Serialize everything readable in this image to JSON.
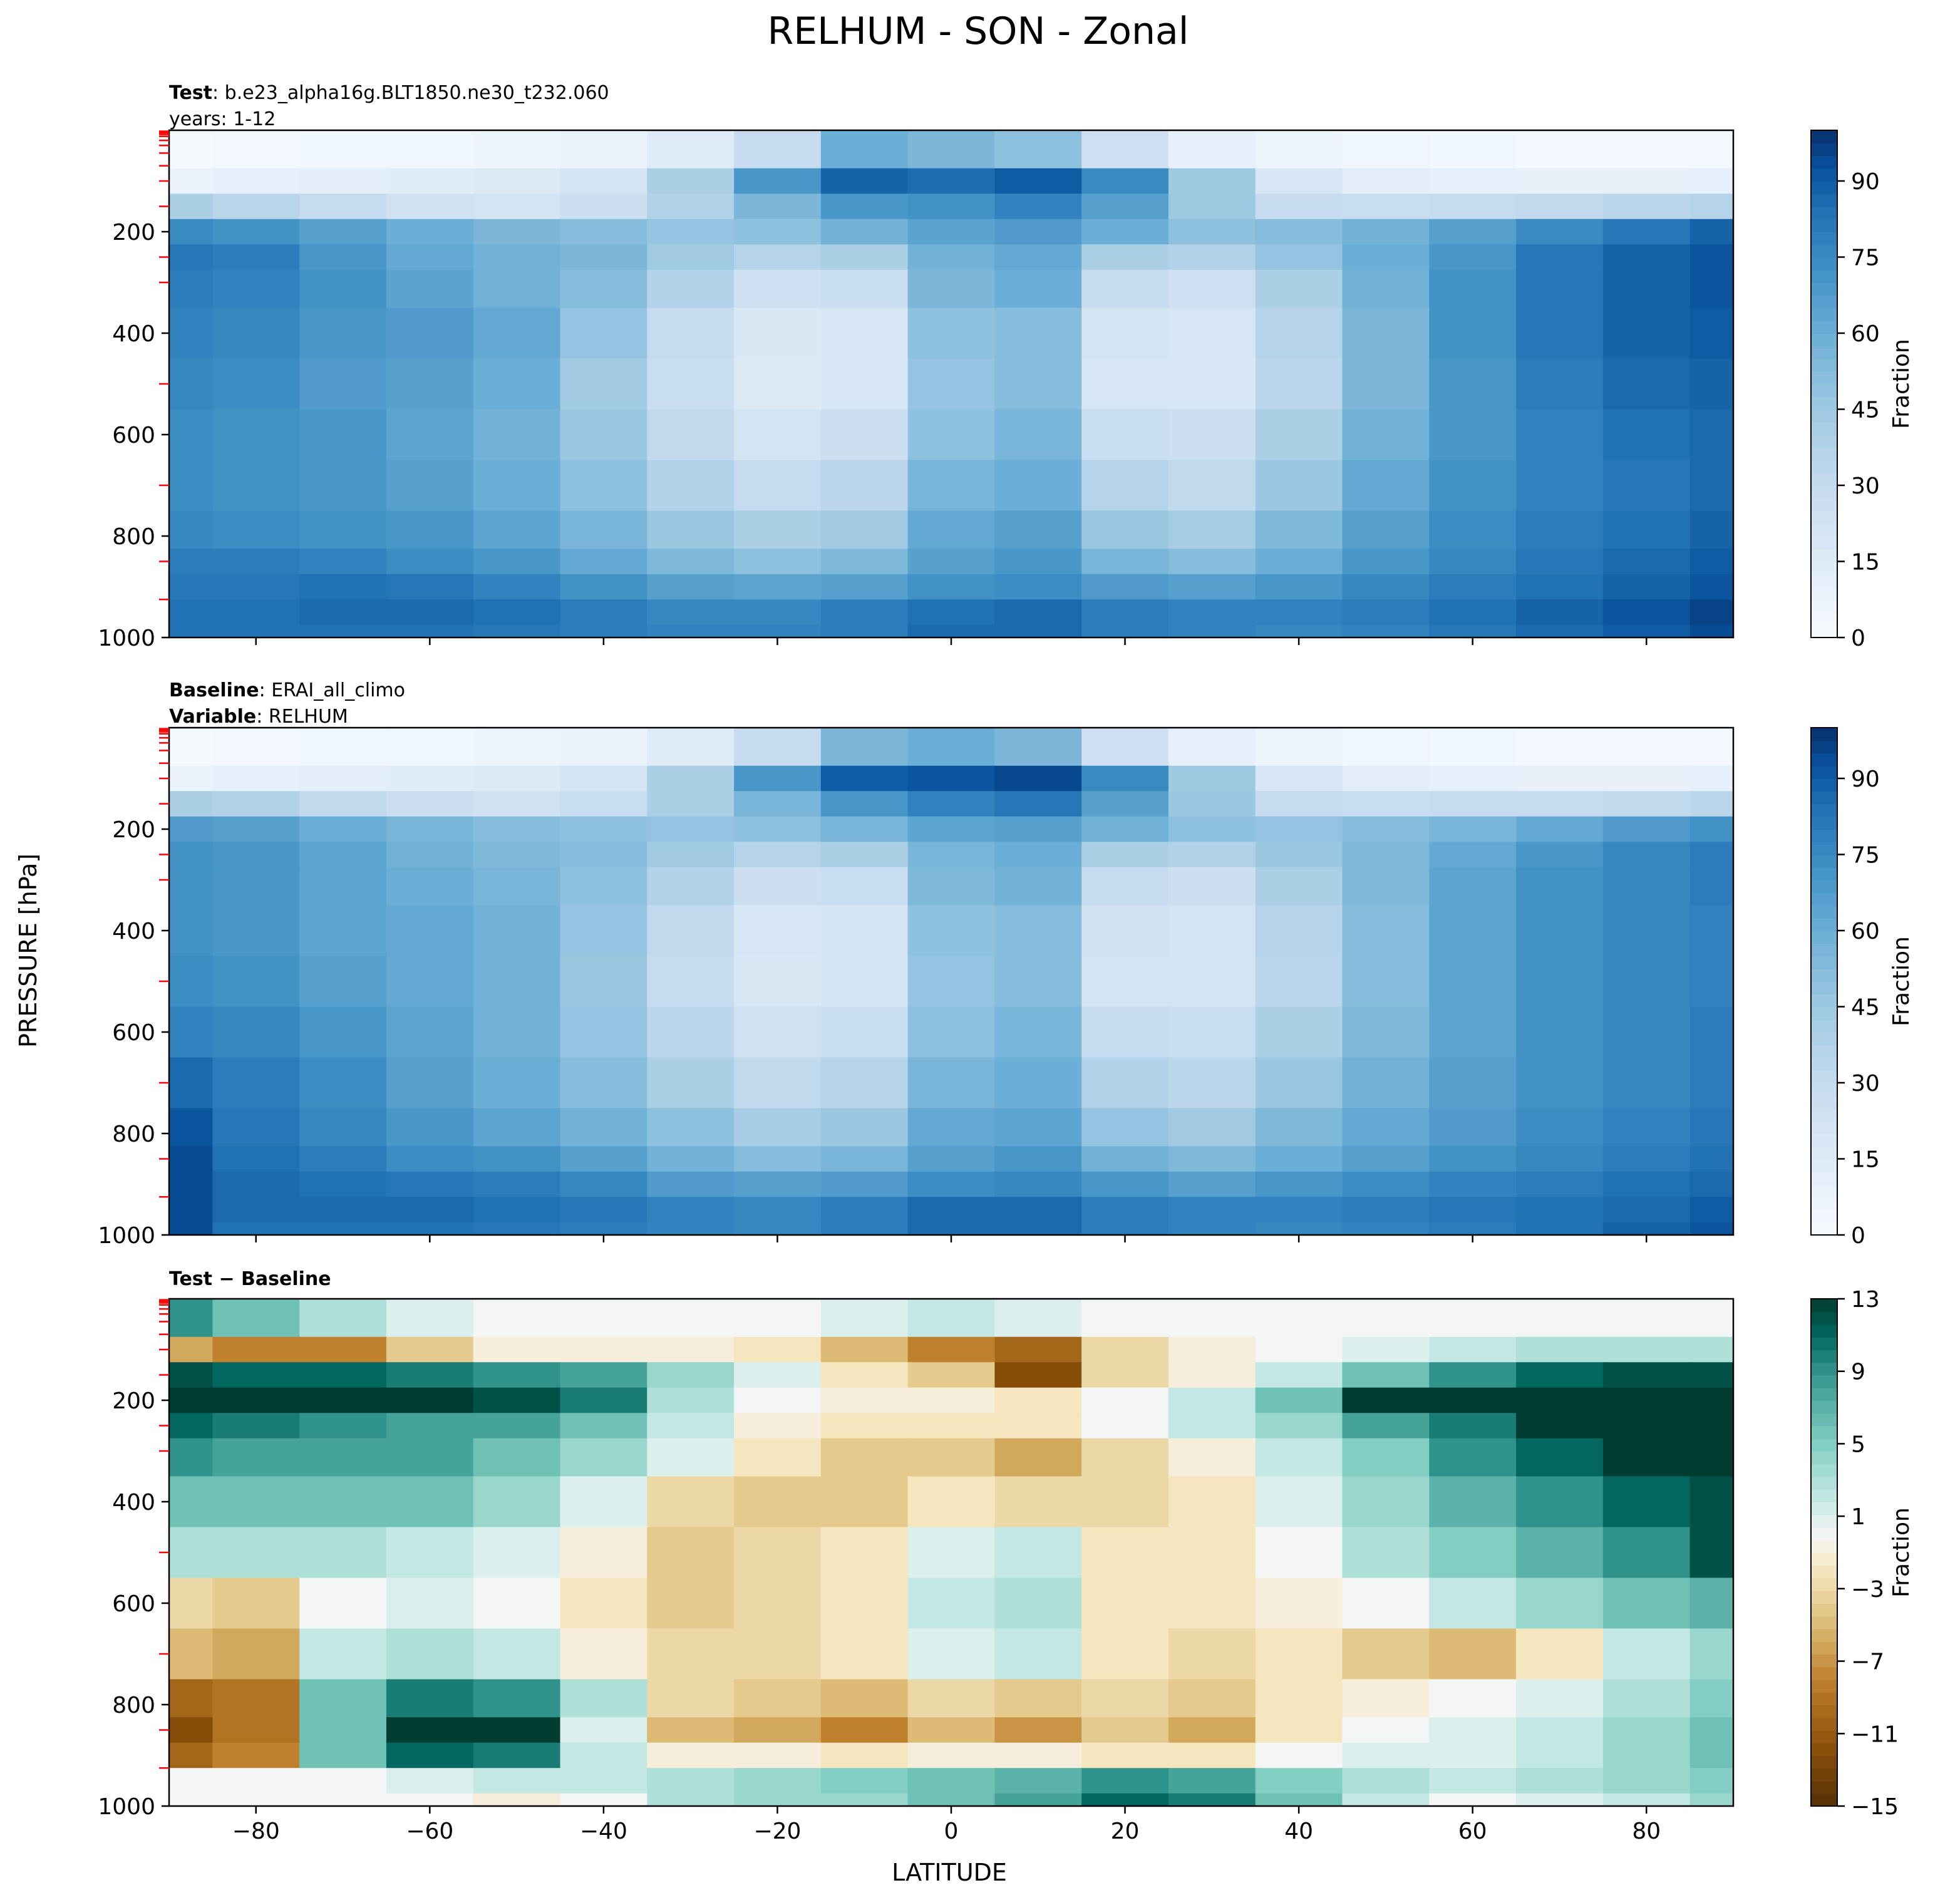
{
  "figure": {
    "title": "RELHUM - SON - Zonal",
    "ylabel": "PRESSURE [hPa]",
    "xlabel": "LATITUDE"
  },
  "chart_data": [
    {
      "type": "heatmap",
      "panel": "test",
      "label_rows": [
        {
          "bold": "Test",
          "text": ": b.e23_alpha16g.BLT1850.ne30_t232.060"
        },
        {
          "bold": "",
          "text": "years: 1-12"
        }
      ],
      "x": [
        -90,
        -80,
        -70,
        -60,
        -50,
        -40,
        -30,
        -20,
        -10,
        0,
        10,
        20,
        30,
        40,
        50,
        60,
        70,
        80,
        90
      ],
      "y": [
        50,
        100,
        150,
        200,
        250,
        300,
        400,
        500,
        600,
        700,
        800,
        850,
        900,
        950,
        1000
      ],
      "z": [
        [
          2,
          3,
          4,
          5,
          6,
          8,
          15,
          30,
          60,
          55,
          50,
          25,
          10,
          6,
          5,
          4,
          3,
          3,
          3
        ],
        [
          8,
          10,
          12,
          14,
          16,
          22,
          40,
          70,
          88,
          85,
          90,
          75,
          45,
          20,
          12,
          10,
          9,
          9,
          10
        ],
        [
          40,
          35,
          30,
          24,
          22,
          26,
          38,
          55,
          70,
          72,
          78,
          66,
          45,
          30,
          28,
          30,
          32,
          34,
          36
        ],
        [
          75,
          72,
          66,
          60,
          55,
          52,
          48,
          50,
          58,
          65,
          68,
          60,
          50,
          52,
          58,
          66,
          75,
          82,
          88
        ],
        [
          82,
          80,
          70,
          62,
          58,
          55,
          44,
          36,
          40,
          58,
          62,
          40,
          38,
          48,
          60,
          70,
          82,
          88,
          92
        ],
        [
          80,
          78,
          72,
          65,
          58,
          52,
          38,
          25,
          28,
          55,
          60,
          30,
          25,
          40,
          58,
          72,
          82,
          88,
          92
        ],
        [
          78,
          76,
          70,
          68,
          62,
          48,
          30,
          18,
          20,
          50,
          52,
          22,
          20,
          36,
          55,
          72,
          82,
          88,
          90
        ],
        [
          76,
          74,
          68,
          66,
          60,
          44,
          28,
          16,
          20,
          48,
          52,
          20,
          20,
          34,
          55,
          70,
          80,
          86,
          88
        ],
        [
          74,
          72,
          70,
          64,
          58,
          46,
          32,
          22,
          26,
          50,
          56,
          28,
          26,
          40,
          58,
          70,
          78,
          84,
          86
        ],
        [
          74,
          72,
          70,
          66,
          60,
          50,
          38,
          30,
          34,
          56,
          60,
          36,
          32,
          46,
          62,
          72,
          78,
          82,
          86
        ],
        [
          76,
          74,
          72,
          70,
          64,
          56,
          46,
          40,
          44,
          62,
          66,
          46,
          42,
          54,
          66,
          74,
          80,
          84,
          88
        ],
        [
          80,
          80,
          78,
          74,
          70,
          62,
          54,
          50,
          54,
          66,
          70,
          56,
          52,
          60,
          70,
          76,
          82,
          86,
          90
        ],
        [
          82,
          82,
          84,
          82,
          78,
          72,
          66,
          64,
          66,
          72,
          74,
          68,
          66,
          70,
          76,
          80,
          84,
          88,
          92
        ],
        [
          84,
          84,
          86,
          86,
          84,
          80,
          76,
          76,
          80,
          84,
          86,
          80,
          78,
          78,
          80,
          84,
          88,
          92,
          96
        ],
        [
          84,
          84,
          84,
          84,
          82,
          80,
          78,
          78,
          80,
          86,
          86,
          80,
          78,
          76,
          78,
          82,
          86,
          90,
          94
        ]
      ],
      "colorbar": {
        "label": "Fraction",
        "ticks": [
          "0",
          "15",
          "30",
          "45",
          "60",
          "75",
          "90"
        ],
        "range": [
          0,
          100
        ],
        "colormap": "Blues"
      }
    },
    {
      "type": "heatmap",
      "panel": "baseline",
      "label_rows": [
        {
          "bold": "Baseline",
          "text": ": ERAI_all_climo"
        },
        {
          "bold": "Variable",
          "text": ": RELHUM"
        }
      ],
      "x": [
        -90,
        -80,
        -70,
        -60,
        -50,
        -40,
        -30,
        -20,
        -10,
        0,
        10,
        20,
        30,
        40,
        50,
        60,
        70,
        80,
        90
      ],
      "y": [
        50,
        100,
        150,
        200,
        250,
        300,
        400,
        500,
        600,
        700,
        800,
        850,
        900,
        950,
        1000
      ],
      "z": [
        [
          2,
          3,
          4,
          5,
          6,
          8,
          15,
          30,
          55,
          60,
          55,
          25,
          10,
          6,
          5,
          4,
          3,
          3,
          3
        ],
        [
          8,
          10,
          12,
          14,
          16,
          22,
          40,
          70,
          90,
          92,
          95,
          75,
          45,
          20,
          12,
          10,
          9,
          9,
          10
        ],
        [
          40,
          38,
          32,
          26,
          24,
          28,
          40,
          56,
          70,
          78,
          82,
          66,
          46,
          30,
          28,
          30,
          30,
          32,
          34
        ],
        [
          68,
          66,
          60,
          56,
          52,
          50,
          48,
          50,
          56,
          64,
          66,
          58,
          50,
          48,
          52,
          56,
          62,
          68,
          72
        ],
        [
          72,
          70,
          64,
          58,
          54,
          52,
          44,
          36,
          40,
          56,
          60,
          40,
          38,
          46,
          54,
          62,
          70,
          76,
          80
        ],
        [
          72,
          70,
          64,
          60,
          56,
          50,
          38,
          26,
          28,
          54,
          58,
          30,
          26,
          40,
          54,
          64,
          72,
          76,
          80
        ],
        [
          72,
          70,
          64,
          62,
          58,
          48,
          32,
          20,
          22,
          50,
          52,
          24,
          22,
          36,
          52,
          64,
          72,
          76,
          78
        ],
        [
          74,
          72,
          66,
          62,
          58,
          46,
          30,
          18,
          22,
          48,
          52,
          22,
          22,
          34,
          52,
          64,
          72,
          76,
          78
        ],
        [
          78,
          76,
          70,
          64,
          58,
          48,
          34,
          24,
          28,
          50,
          56,
          30,
          28,
          40,
          54,
          64,
          72,
          76,
          80
        ],
        [
          86,
          80,
          74,
          66,
          60,
          52,
          40,
          32,
          36,
          56,
          60,
          38,
          34,
          46,
          58,
          66,
          72,
          76,
          80
        ],
        [
          92,
          82,
          76,
          70,
          64,
          58,
          50,
          42,
          46,
          62,
          64,
          48,
          44,
          54,
          62,
          68,
          74,
          78,
          82
        ],
        [
          94,
          84,
          80,
          74,
          72,
          66,
          58,
          52,
          56,
          66,
          70,
          58,
          54,
          60,
          66,
          72,
          76,
          80,
          84
        ],
        [
          94,
          86,
          84,
          82,
          80,
          76,
          68,
          66,
          68,
          74,
          76,
          70,
          66,
          70,
          74,
          78,
          80,
          84,
          86
        ],
        [
          94,
          86,
          86,
          86,
          84,
          82,
          78,
          76,
          80,
          86,
          86,
          80,
          78,
          78,
          80,
          82,
          84,
          86,
          90
        ],
        [
          94,
          84,
          84,
          84,
          82,
          80,
          78,
          76,
          80,
          86,
          86,
          80,
          78,
          76,
          78,
          80,
          84,
          88,
          92
        ]
      ],
      "colorbar": {
        "label": "Fraction",
        "ticks": [
          "0",
          "15",
          "30",
          "45",
          "60",
          "75",
          "90"
        ],
        "range": [
          0,
          100
        ],
        "colormap": "Blues"
      }
    },
    {
      "type": "heatmap",
      "panel": "difference",
      "label_rows": [
        {
          "bold": "Test − Baseline",
          "text": ""
        }
      ],
      "x": [
        -90,
        -80,
        -70,
        -60,
        -50,
        -40,
        -30,
        -20,
        -10,
        0,
        10,
        20,
        30,
        40,
        50,
        60,
        70,
        80,
        90
      ],
      "y": [
        50,
        100,
        150,
        200,
        250,
        300,
        400,
        500,
        600,
        700,
        800,
        850,
        900,
        950,
        1000
      ],
      "z": [
        [
          9,
          6,
          3,
          1,
          0,
          0,
          0,
          0,
          1,
          2,
          1,
          0,
          0,
          0,
          0,
          0,
          0,
          0,
          0
        ],
        [
          -6,
          -8,
          -8,
          -4,
          -1,
          -1,
          -1,
          -2,
          -5,
          -8,
          -10,
          -3,
          -1,
          0,
          1,
          2,
          3,
          3,
          3
        ],
        [
          12,
          11,
          11,
          10,
          9,
          8,
          4,
          1,
          -2,
          -4,
          -12,
          -3,
          -1,
          2,
          6,
          9,
          11,
          12,
          12
        ],
        [
          14,
          14,
          14,
          14,
          12,
          10,
          3,
          0,
          -1,
          -1,
          -2,
          0,
          2,
          6,
          14,
          14,
          14,
          14,
          14
        ],
        [
          11,
          10,
          9,
          8,
          8,
          6,
          2,
          -1,
          -2,
          -2,
          -2,
          0,
          2,
          4,
          8,
          10,
          13,
          14,
          14
        ],
        [
          9,
          8,
          8,
          8,
          6,
          4,
          1,
          -2,
          -4,
          -4,
          -6,
          -3,
          -1,
          2,
          5,
          9,
          11,
          13,
          14
        ],
        [
          6,
          6,
          6,
          6,
          4,
          1,
          -3,
          -4,
          -4,
          -2,
          -3,
          -3,
          -2,
          1,
          4,
          7,
          9,
          11,
          12
        ],
        [
          3,
          3,
          3,
          2,
          1,
          -1,
          -4,
          -3,
          -2,
          1,
          2,
          -2,
          -2,
          0,
          3,
          5,
          7,
          9,
          12
        ],
        [
          -3,
          -4,
          0,
          1,
          0,
          -2,
          -4,
          -3,
          -2,
          2,
          3,
          -2,
          -2,
          -1,
          0,
          2,
          4,
          6,
          7
        ],
        [
          -5,
          -6,
          2,
          3,
          2,
          -1,
          -3,
          -3,
          -2,
          1,
          2,
          -2,
          -3,
          -2,
          -4,
          -5,
          -2,
          2,
          4
        ],
        [
          -10,
          -9,
          6,
          10,
          9,
          3,
          -3,
          -4,
          -5,
          -3,
          -4,
          -3,
          -4,
          -2,
          -1,
          0,
          1,
          3,
          5
        ],
        [
          -12,
          -9,
          6,
          14,
          14,
          1,
          -5,
          -6,
          -8,
          -5,
          -7,
          -4,
          -6,
          -2,
          0,
          1,
          2,
          4,
          6
        ],
        [
          -10,
          -8,
          6,
          11,
          10,
          2,
          -1,
          -1,
          -2,
          -1,
          -1,
          -2,
          -2,
          0,
          1,
          1,
          2,
          4,
          6
        ],
        [
          0,
          0,
          0,
          1,
          2,
          2,
          3,
          4,
          5,
          6,
          7,
          9,
          8,
          5,
          3,
          2,
          3,
          4,
          5
        ],
        [
          0,
          0,
          0,
          0,
          -1,
          0,
          3,
          4,
          4,
          6,
          8,
          11,
          10,
          6,
          2,
          0,
          1,
          2,
          4
        ]
      ],
      "colorbar": {
        "label": "Fraction",
        "ticks": [
          "−15",
          "−11",
          "−7",
          "−3",
          "1",
          "5",
          "9",
          "13"
        ],
        "range": [
          -15,
          13
        ],
        "colormap": "BrBG"
      }
    }
  ],
  "axes": {
    "yticks": [
      200,
      400,
      600,
      800,
      1000
    ],
    "xticks": [
      "−80",
      "−60",
      "−40",
      "−20",
      "0",
      "20",
      "40",
      "60",
      "80"
    ],
    "xtick_values": [
      -80,
      -60,
      -40,
      -20,
      0,
      20,
      40,
      60,
      80
    ],
    "xlim": [
      -90,
      90
    ],
    "ylim": [
      0,
      1000
    ],
    "y_inverted": true,
    "minor_tick_color": "#ff0000",
    "minor_yticks": [
      2,
      5,
      8,
      12,
      20,
      30,
      45,
      70,
      100,
      150,
      250,
      300,
      500,
      700,
      850,
      925
    ]
  }
}
